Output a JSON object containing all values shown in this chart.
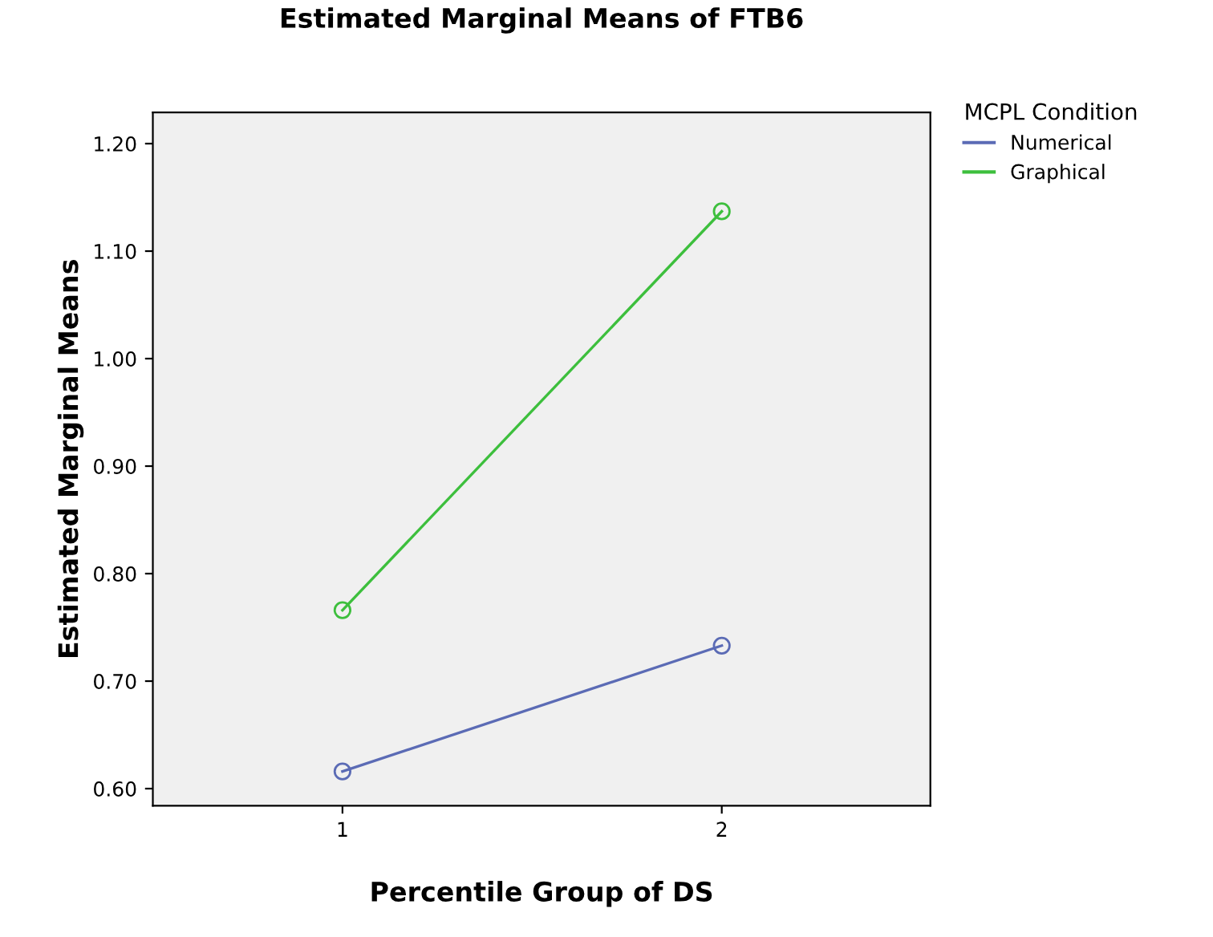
{
  "chart_data": {
    "type": "line",
    "title": "Estimated Marginal Means of FTB6",
    "xlabel": "Percentile Group of DS",
    "ylabel": "Estimated Marginal Means",
    "legend_title": "MCPL Condition",
    "categories": [
      "1",
      "2"
    ],
    "series": [
      {
        "name": "Numerical",
        "color": "#5b6bb5",
        "values": [
          0.616,
          0.733
        ]
      },
      {
        "name": "Graphical",
        "color": "#3dbf3d",
        "values": [
          0.766,
          1.137
        ]
      }
    ],
    "ylim": [
      0.584,
      1.229
    ],
    "yticks": [
      {
        "value": 0.6,
        "label": "0.60"
      },
      {
        "value": 0.7,
        "label": "0.70"
      },
      {
        "value": 0.8,
        "label": "0.80"
      },
      {
        "value": 0.9,
        "label": "0.90"
      },
      {
        "value": 1.0,
        "label": "1.00"
      },
      {
        "value": 1.1,
        "label": "1.10"
      },
      {
        "value": 1.2,
        "label": "1.20"
      }
    ],
    "marker": "circle",
    "legend": "top right",
    "grid": false
  }
}
